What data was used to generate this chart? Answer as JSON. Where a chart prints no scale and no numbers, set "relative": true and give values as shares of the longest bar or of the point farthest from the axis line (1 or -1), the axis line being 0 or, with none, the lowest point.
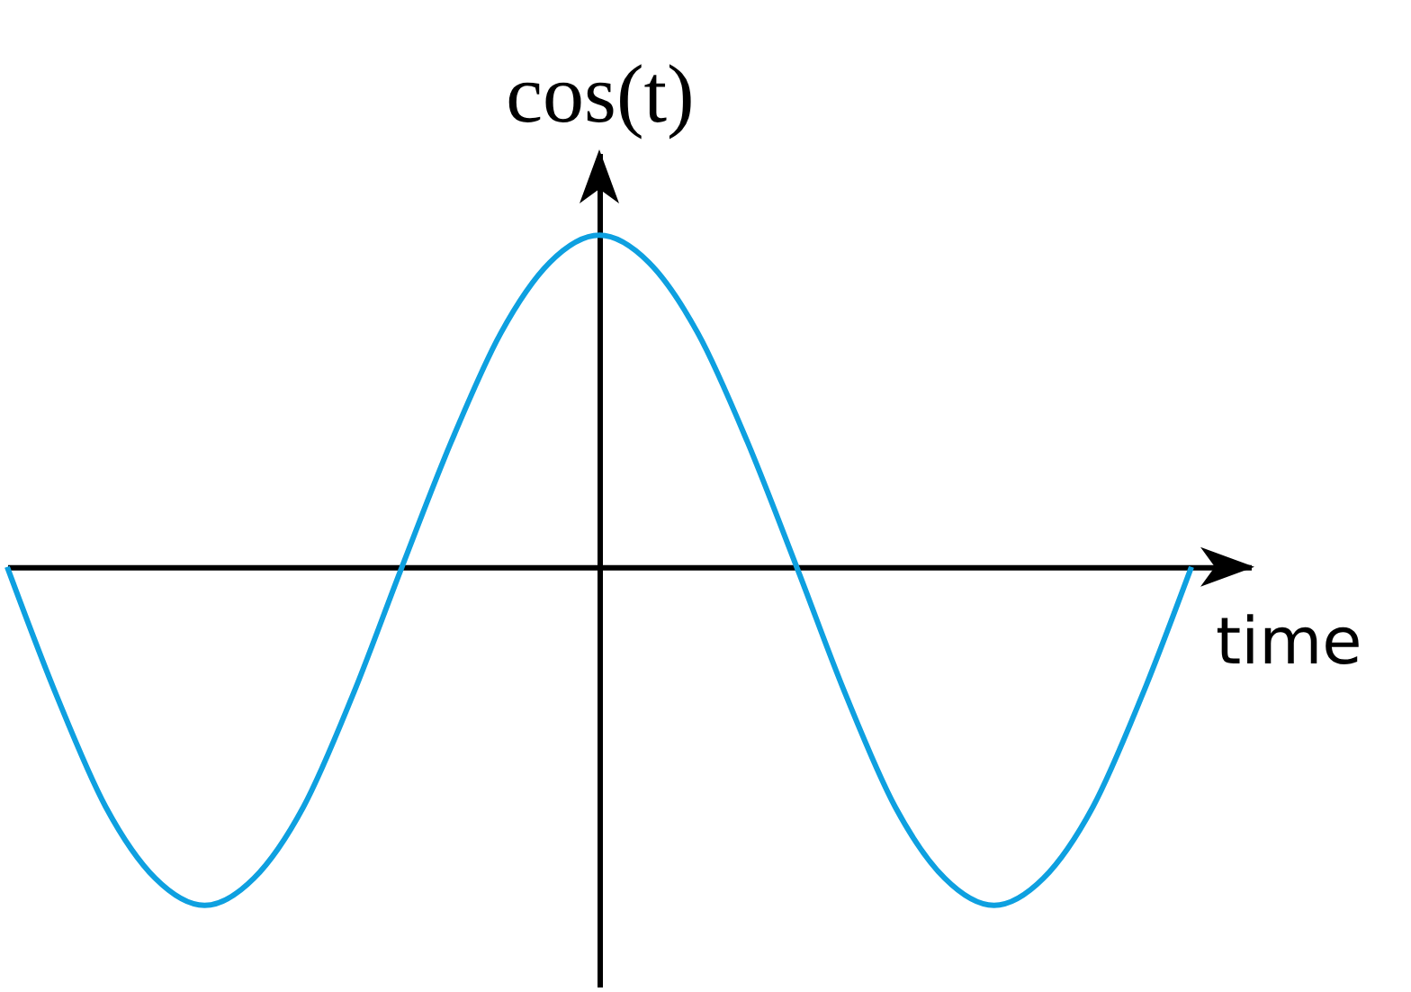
{
  "chart_data": {
    "type": "line",
    "ylabel": "cos(t)",
    "xlabel": "time",
    "relative": true,
    "categories": [
      null,
      null,
      null,
      null,
      null,
      null,
      null,
      null,
      null,
      null,
      null,
      null,
      null,
      null,
      null,
      null,
      null,
      null,
      null,
      null,
      null,
      null,
      null,
      null,
      null
    ],
    "series": [
      {
        "color": "#0ea0e0",
        "values": [
          0,
          -0.38,
          -0.71,
          -0.92,
          -1,
          -0.92,
          -0.71,
          -0.38,
          0,
          0.37,
          0.69,
          0.9,
          0.98,
          0.9,
          0.69,
          0.37,
          0,
          -0.38,
          -0.71,
          -0.92,
          -1,
          -0.92,
          -0.71,
          -0.38,
          0
        ]
      }
    ]
  }
}
